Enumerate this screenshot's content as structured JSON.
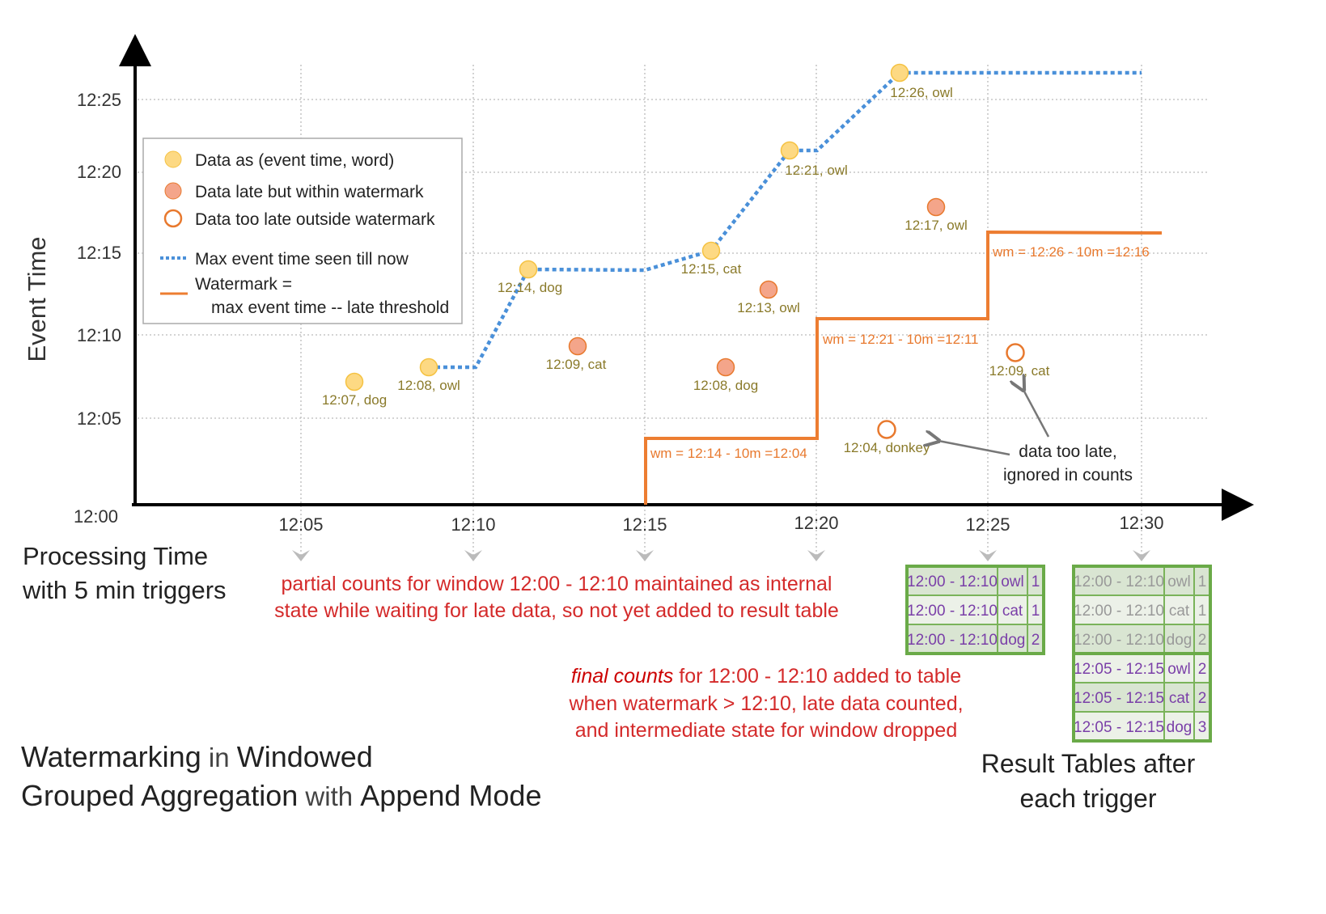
{
  "y_axis": {
    "label": "Event Time",
    "ticks": [
      "12:00",
      "12:05",
      "12:10",
      "12:15",
      "12:20",
      "12:25"
    ]
  },
  "x_axis": {
    "label_line1": "Processing Time",
    "label_line2": "with 5 min triggers",
    "ticks": [
      "12:05",
      "12:10",
      "12:15",
      "12:20",
      "12:25",
      "12:30"
    ]
  },
  "legend": {
    "data": "Data as (event time, word)",
    "late": "Data late but within watermark",
    "too_late": "Data too late outside watermark",
    "max": "Max event time seen till now",
    "wm_line1": "Watermark =",
    "wm_line2": "max event time -- late threshold"
  },
  "points": [
    {
      "label": "12:07, dog",
      "kind": "on-time"
    },
    {
      "label": "12:08, owl",
      "kind": "on-time"
    },
    {
      "label": "12:14, dog",
      "kind": "on-time"
    },
    {
      "label": "12:09, cat",
      "kind": "late"
    },
    {
      "label": "12:15, cat",
      "kind": "on-time"
    },
    {
      "label": "12:13, owl",
      "kind": "late"
    },
    {
      "label": "12:08, dog",
      "kind": "late"
    },
    {
      "label": "12:21, owl",
      "kind": "on-time"
    },
    {
      "label": "12:26, owl",
      "kind": "on-time"
    },
    {
      "label": "12:17, owl",
      "kind": "late"
    },
    {
      "label": "12:04, donkey",
      "kind": "too-late"
    },
    {
      "label": "12:09, cat",
      "kind": "too-late"
    }
  ],
  "watermarks": [
    "wm = 12:14 - 10m =12:04",
    "wm = 12:21 - 10m =12:11",
    "wm = 12:26 - 10m =12:16"
  ],
  "annotations": {
    "too_late_1": "data too late,",
    "too_late_2": "ignored in counts",
    "partial_1": "partial counts for window 12:00 - 12:10 maintained as internal",
    "partial_2": "state while waiting for late data, so not yet added  to result table",
    "final_em": "final counts",
    "final_1": " for 12:00 - 12:10 added to table",
    "final_2": "when watermark > 12:10, late data counted,",
    "final_3": "and intermediate state for window dropped"
  },
  "title": {
    "w1": "Watermarking",
    "w2": " in ",
    "w3": "Windowed",
    "w4": "Grouped Aggregation",
    "w5": " with ",
    "w6": "Append Mode"
  },
  "result_caption": {
    "line1": "Result Tables after",
    "line2": "each trigger"
  },
  "table_1225": [
    [
      "12:00 - 12:10",
      "owl",
      "1"
    ],
    [
      "12:00 - 12:10",
      "cat",
      "1"
    ],
    [
      "12:00 - 12:10",
      "dog",
      "2"
    ]
  ],
  "table_1230": [
    [
      "12:00 - 12:10",
      "owl",
      "1"
    ],
    [
      "12:00 - 12:10",
      "cat",
      "1"
    ],
    [
      "12:00 - 12:10",
      "dog",
      "2"
    ],
    [
      "12:05 - 12:15",
      "owl",
      "2"
    ],
    [
      "12:05 - 12:15",
      "cat",
      "2"
    ],
    [
      "12:05 - 12:15",
      "dog",
      "3"
    ]
  ],
  "colors": {
    "on_time": "#fdd983",
    "late": "#f4a58a",
    "too_late": "#e8792e",
    "max_line": "#4a90d9",
    "watermark": "#ed7d31",
    "table_border": "#6aaa48",
    "table_text": "#7a3fa8"
  }
}
